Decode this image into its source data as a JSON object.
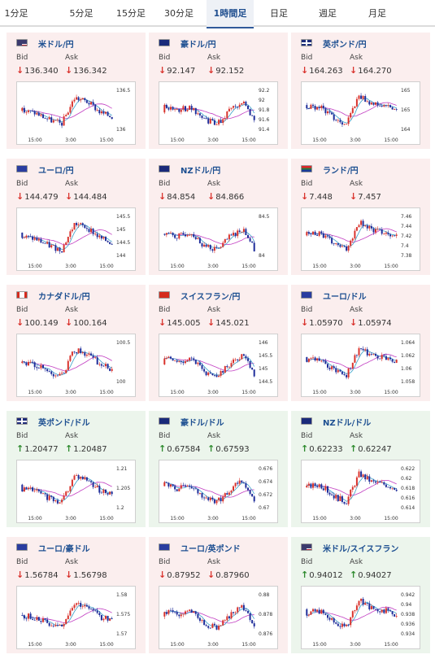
{
  "tabs": [
    {
      "label": "1分足",
      "active": false
    },
    {
      "label": "5分足",
      "active": false
    },
    {
      "label": "15分足",
      "active": false
    },
    {
      "label": "30分足",
      "active": false
    },
    {
      "label": "1時間足",
      "active": true
    },
    {
      "label": "日足",
      "active": false
    },
    {
      "label": "週足",
      "active": false
    },
    {
      "label": "月足",
      "active": false
    }
  ],
  "bid_label": "Bid",
  "ask_label": "Ask",
  "colors": {
    "up_candle": "#d9322c",
    "down_candle": "#1f2d9a",
    "ma_short": "#3aa0c8",
    "ma_long": "#c23ec2",
    "negative_bg": "#fbeeee",
    "positive_bg": "#ecf5ec",
    "arrow_down": "#d9322c",
    "arrow_up": "#2d8a2d"
  },
  "pairs": [
    {
      "name": "米ドル/円",
      "bid": "136.340",
      "ask": "136.342",
      "direction": "down",
      "flag": "us-flag",
      "yticks": [
        "136.5",
        "136"
      ],
      "xticks": [
        "15:00",
        "3:00",
        "15:00"
      ]
    },
    {
      "name": "豪ドル/円",
      "bid": "92.147",
      "ask": "92.152",
      "direction": "down",
      "flag": "au-flag",
      "yticks": [
        "92.2",
        "92",
        "91.8",
        "91.6",
        "91.4"
      ],
      "xticks": [
        "15:00",
        "3:00",
        "15:00"
      ]
    },
    {
      "name": "英ポンド/円",
      "bid": "164.263",
      "ask": "164.270",
      "direction": "down",
      "flag": "gb-flag",
      "yticks": [
        "165",
        "165",
        "164"
      ],
      "xticks": [
        "15:00",
        "3:00",
        "15:00"
      ]
    },
    {
      "name": "ユーロ/円",
      "bid": "144.479",
      "ask": "144.484",
      "direction": "down",
      "flag": "eu-flag",
      "yticks": [
        "145.5",
        "145",
        "144.5",
        "144"
      ],
      "xticks": [
        "15:00",
        "3:00",
        "15:00"
      ]
    },
    {
      "name": "NZドル/円",
      "bid": "84.854",
      "ask": "84.866",
      "direction": "down",
      "flag": "nz-flag",
      "yticks": [
        "84.5",
        "84"
      ],
      "xticks": [
        "15:00",
        "3:00",
        "15:00"
      ]
    },
    {
      "name": "ランド/円",
      "bid": "7.448",
      "ask": "7.457",
      "direction": "down",
      "flag": "za-flag",
      "yticks": [
        "7.46",
        "7.44",
        "7.42",
        "7.4",
        "7.38"
      ],
      "xticks": [
        "15:00",
        "3:00",
        "15:00"
      ]
    },
    {
      "name": "カナダドル/円",
      "bid": "100.149",
      "ask": "100.164",
      "direction": "down",
      "flag": "ca-flag",
      "yticks": [
        "100.5",
        "100"
      ],
      "xticks": [
        "15:00",
        "3:00",
        "15:00"
      ]
    },
    {
      "name": "スイスフラン/円",
      "bid": "145.005",
      "ask": "145.021",
      "direction": "down",
      "flag": "ch-flag",
      "yticks": [
        "146",
        "145.5",
        "145",
        "144.5"
      ],
      "xticks": [
        "15:00",
        "3:00",
        "15:00"
      ]
    },
    {
      "name": "ユーロ/ドル",
      "bid": "1.05970",
      "ask": "1.05974",
      "direction": "down",
      "flag": "eu-flag",
      "yticks": [
        "1.064",
        "1.062",
        "1.06",
        "1.058"
      ],
      "xticks": [
        "15:00",
        "3:00",
        "15:00"
      ]
    },
    {
      "name": "英ポンド/ドル",
      "bid": "1.20477",
      "ask": "1.20487",
      "direction": "up",
      "flag": "gb-flag",
      "yticks": [
        "1.21",
        "1.205",
        "1.2"
      ],
      "xticks": [
        "15:00",
        "3:00",
        "15:00"
      ]
    },
    {
      "name": "豪ドル/ドル",
      "bid": "0.67584",
      "ask": "0.67593",
      "direction": "up",
      "flag": "au-flag",
      "yticks": [
        "0.676",
        "0.674",
        "0.672",
        "0.67"
      ],
      "xticks": [
        "15:00",
        "3:00",
        "15:00"
      ]
    },
    {
      "name": "NZドル/ドル",
      "bid": "0.62233",
      "ask": "0.62247",
      "direction": "up",
      "flag": "nz-flag",
      "yticks": [
        "0.622",
        "0.62",
        "0.618",
        "0.616",
        "0.614"
      ],
      "xticks": [
        "15:00",
        "3:00",
        "15:00"
      ]
    },
    {
      "name": "ユーロ/豪ドル",
      "bid": "1.56784",
      "ask": "1.56798",
      "direction": "down",
      "flag": "eu-flag",
      "yticks": [
        "1.58",
        "1.575",
        "1.57"
      ],
      "xticks": [
        "15:00",
        "3:00",
        "15:00"
      ]
    },
    {
      "name": "ユーロ/英ポンド",
      "bid": "0.87952",
      "ask": "0.87960",
      "direction": "down",
      "flag": "eu-flag",
      "yticks": [
        "0.88",
        "0.878",
        "0.876"
      ],
      "xticks": [
        "15:00",
        "3:00",
        "15:00"
      ]
    },
    {
      "name": "米ドル/スイスフラン",
      "bid": "0.94012",
      "ask": "0.94027",
      "direction": "up",
      "flag": "us-flag",
      "yticks": [
        "0.942",
        "0.94",
        "0.938",
        "0.936",
        "0.934"
      ],
      "xticks": [
        "15:00",
        "3:00",
        "15:00"
      ]
    }
  ]
}
